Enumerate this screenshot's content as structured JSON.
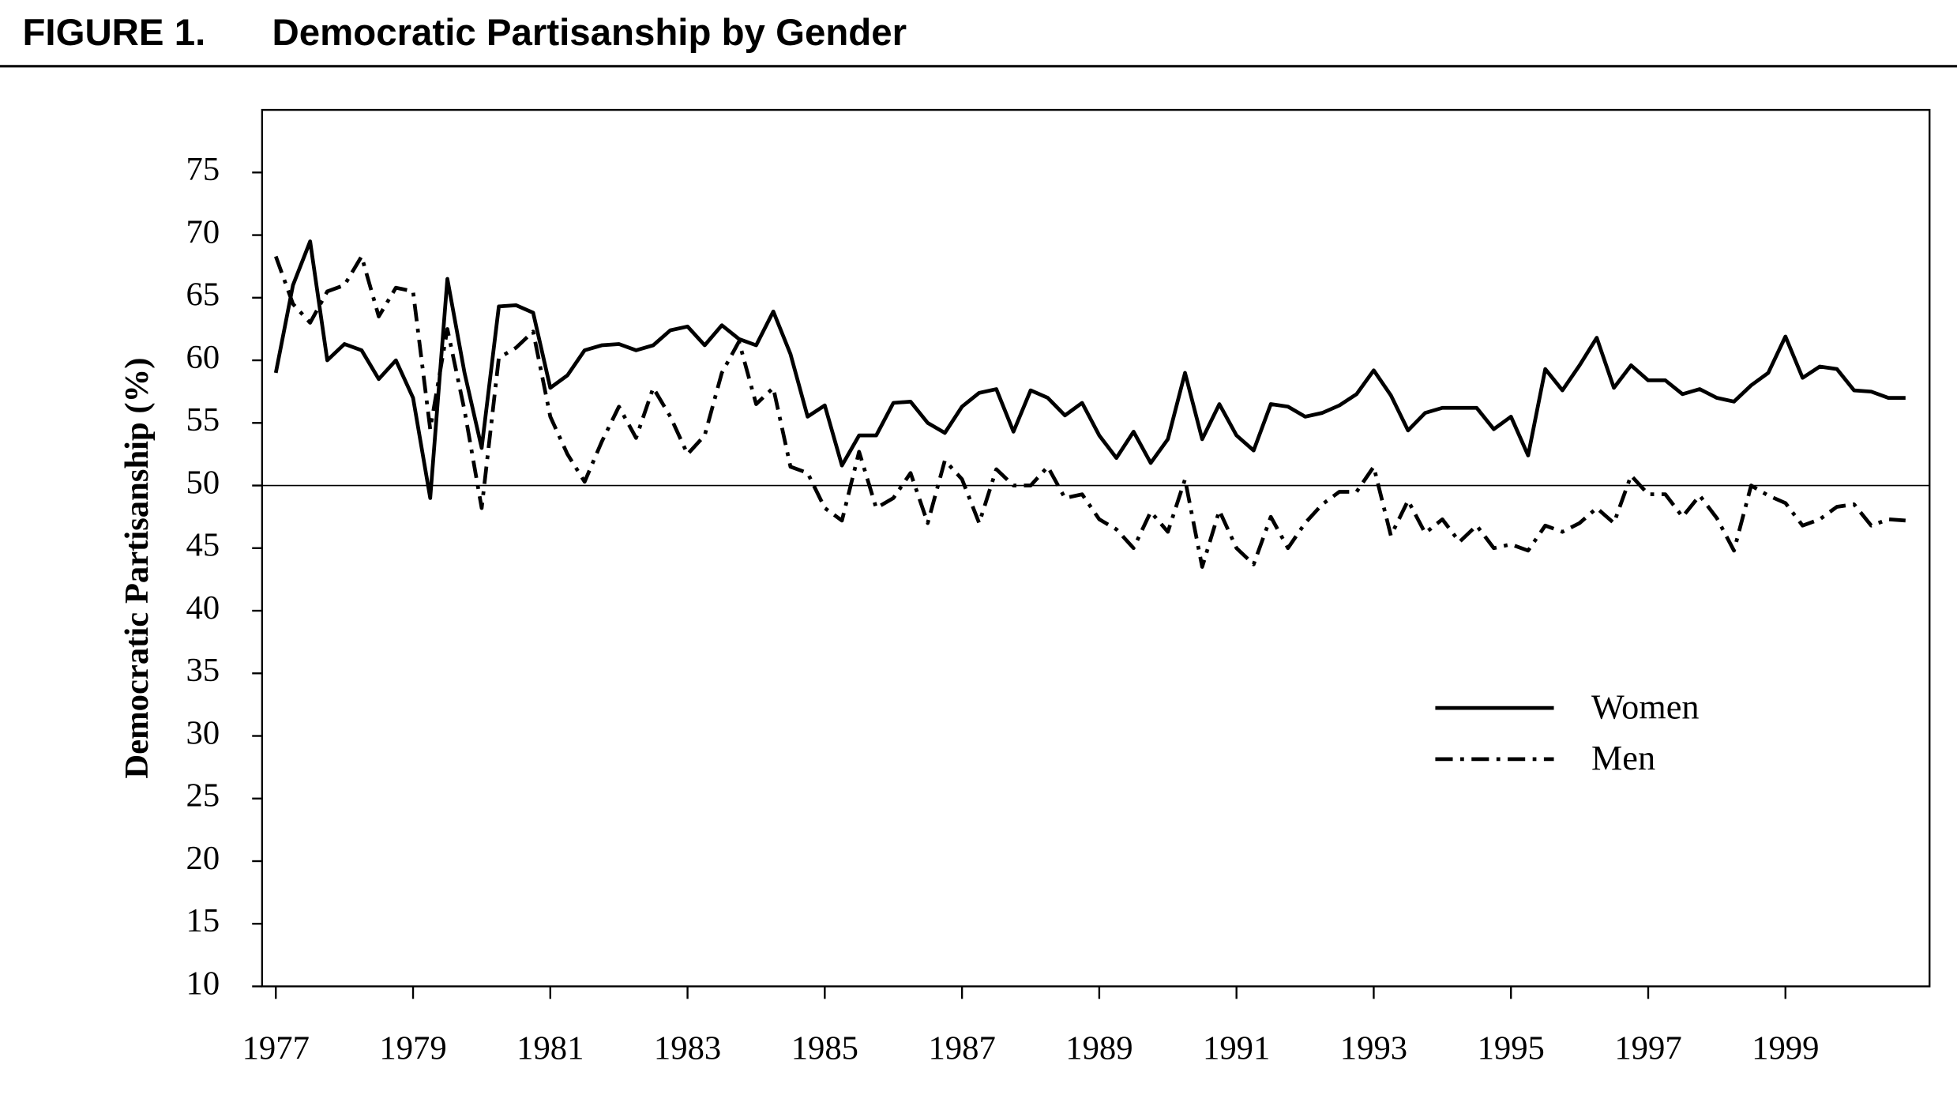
{
  "chart_data": {
    "type": "line",
    "figure_label": "FIGURE 1.",
    "title": "Democratic Partisanship by Gender",
    "ylabel": "Democratic Partisanship (%)",
    "x": [
      1977,
      1977.25,
      1977.5,
      1977.75,
      1978,
      1978.25,
      1978.5,
      1978.75,
      1979,
      1979.25,
      1979.5,
      1979.75,
      1980,
      1980.25,
      1980.5,
      1980.75,
      1981,
      1981.25,
      1981.5,
      1981.75,
      1982,
      1982.25,
      1982.5,
      1982.75,
      1983,
      1983.25,
      1983.5,
      1983.75,
      1984,
      1984.25,
      1984.5,
      1984.75,
      1985,
      1985.25,
      1985.5,
      1985.75,
      1986,
      1986.25,
      1986.5,
      1986.75,
      1987,
      1987.25,
      1987.5,
      1987.75,
      1988,
      1988.25,
      1988.5,
      1988.75,
      1989,
      1989.25,
      1989.5,
      1989.75,
      1990,
      1990.25,
      1990.5,
      1990.75,
      1991,
      1991.25,
      1991.5,
      1991.75,
      1992,
      1992.25,
      1992.5,
      1992.75,
      1993,
      1993.25,
      1993.5,
      1993.75,
      1994,
      1994.25,
      1994.5,
      1994.75,
      1995,
      1995.25,
      1995.5,
      1995.75,
      1996,
      1996.25,
      1996.5,
      1996.75,
      1997,
      1997.25,
      1997.5,
      1997.75,
      1998,
      1998.25,
      1998.5,
      1998.75,
      1999,
      1999.25,
      1999.5,
      1999.75,
      2000,
      2000.25,
      2000.5,
      2000.75
    ],
    "series": [
      {
        "name": "Women",
        "color": "#000000",
        "dash": "solid",
        "values": [
          59,
          66,
          69.5,
          60,
          61.3,
          60.8,
          58.5,
          60,
          57,
          49,
          66.5,
          59,
          53,
          64.3,
          64.4,
          63.8,
          57.8,
          58.8,
          60.8,
          61.2,
          61.3,
          60.8,
          61.2,
          62.4,
          62.7,
          61.2,
          62.8,
          61.7,
          61.2,
          63.9,
          60.5,
          55.5,
          56.4,
          51.6,
          54,
          54,
          56.6,
          56.7,
          55,
          54.2,
          56.3,
          57.4,
          57.7,
          54.3,
          57.6,
          57,
          55.6,
          56.6,
          54,
          52.2,
          54.3,
          51.8,
          53.7,
          59,
          53.7,
          56.5,
          54,
          52.8,
          56.5,
          56.3,
          55.5,
          55.8,
          56.4,
          57.3,
          59.2,
          57.2,
          54.4,
          55.8,
          56.2,
          56.2,
          56.2,
          54.5,
          55.5,
          52.4,
          59.3,
          57.6,
          59.6,
          61.8,
          57.8,
          59.6,
          58.4,
          58.4,
          57.3,
          57.7,
          57,
          56.7,
          58,
          59,
          61.9,
          58.6,
          59.5,
          59.3,
          57.6,
          57.5,
          57,
          57
        ]
      },
      {
        "name": "Men",
        "color": "#000000",
        "dash": "dash-dot",
        "values": [
          68.3,
          64.5,
          63,
          65.5,
          66,
          68.3,
          63.5,
          65.8,
          65.5,
          54.5,
          62.5,
          56,
          48.2,
          60.2,
          61,
          62.3,
          55.5,
          52.5,
          50.3,
          53.5,
          56.3,
          53.8,
          57.8,
          55.5,
          52.5,
          54,
          59,
          61.5,
          56.5,
          57.8,
          51.5,
          51,
          48.2,
          47.2,
          52.7,
          48.2,
          49,
          51,
          47,
          52,
          50.5,
          47,
          51.3,
          50,
          50,
          51.5,
          49,
          49.3,
          47.3,
          46.5,
          45,
          47.9,
          46.3,
          50.5,
          43.5,
          48,
          45,
          43.7,
          47.5,
          45,
          47,
          48.5,
          49.5,
          49.5,
          51.5,
          46,
          48.8,
          46.2,
          47.3,
          45.5,
          46.8,
          45,
          45.3,
          44.8,
          46.8,
          46.3,
          47,
          48.2,
          47,
          50.8,
          49.3,
          49.3,
          47.5,
          49.2,
          47.4,
          44.8,
          50,
          49.2,
          48.6,
          46.8,
          47.3,
          48.3,
          48.5,
          46.8,
          47.3,
          47.2
        ]
      }
    ],
    "xlim": [
      1976.8,
      2001.1
    ],
    "xticks": [
      1977,
      1979,
      1981,
      1983,
      1985,
      1987,
      1989,
      1991,
      1993,
      1995,
      1997,
      1999
    ],
    "ylim": [
      10,
      80
    ],
    "yticks": [
      10,
      15,
      20,
      25,
      30,
      35,
      40,
      45,
      50,
      55,
      60,
      65,
      70,
      75
    ],
    "hline": 50,
    "grid": false,
    "legend_position": "right"
  }
}
